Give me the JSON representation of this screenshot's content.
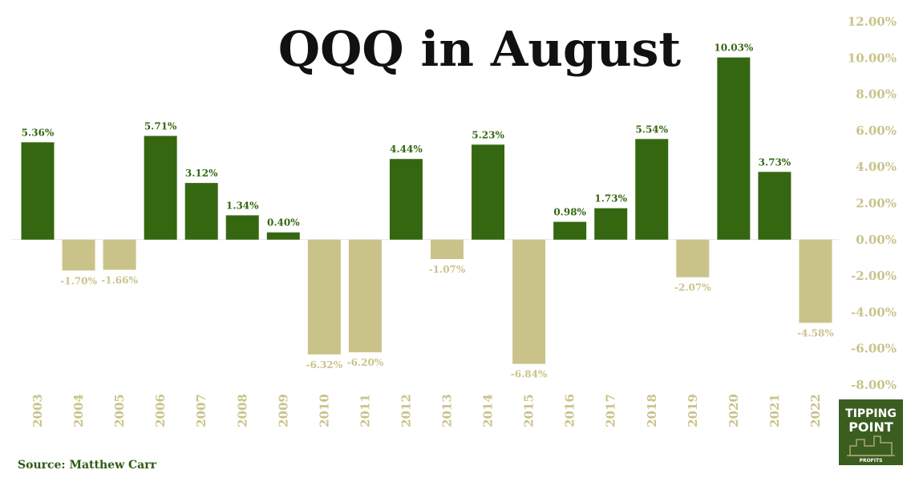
{
  "chart_data": {
    "type": "bar",
    "title": "QQQ in August",
    "categories": [
      "2003",
      "2004",
      "2005",
      "2006",
      "2007",
      "2008",
      "2009",
      "2010",
      "2011",
      "2012",
      "2013",
      "2014",
      "2015",
      "2016",
      "2017",
      "2018",
      "2019",
      "2020",
      "2021",
      "2022"
    ],
    "values": [
      5.36,
      -1.7,
      -1.66,
      5.71,
      3.12,
      1.34,
      0.4,
      -6.32,
      -6.2,
      4.44,
      -1.07,
      5.23,
      -6.84,
      0.98,
      1.73,
      5.54,
      -2.07,
      10.03,
      3.73,
      -4.58
    ],
    "value_labels": [
      "5.36%",
      "-1.70%",
      "-1.66%",
      "5.71%",
      "3.12%",
      "1.34%",
      "0.40%",
      "-6.32%",
      "-6.20%",
      "4.44%",
      "-1.07%",
      "5.23%",
      "-6.84%",
      "0.98%",
      "1.73%",
      "5.54%",
      "-2.07%",
      "10.03%",
      "3.73%",
      "-4.58%"
    ],
    "ylim": [
      -8,
      12
    ],
    "yticks": [
      12,
      10,
      8,
      6,
      4,
      2,
      0,
      -2,
      -4,
      -6,
      -8
    ],
    "ytick_labels": [
      "12.00%",
      "10.00%",
      "8.00%",
      "6.00%",
      "4.00%",
      "2.00%",
      "0.00%",
      "-2.00%",
      "-4.00%",
      "-6.00%",
      "-8.00%"
    ],
    "yaxis_position": "right",
    "grid": false,
    "xlabel": "",
    "ylabel": "",
    "colors": {
      "positive": "#356711",
      "negative": "#c9c38a",
      "zero_line": "#e6e6e6"
    }
  },
  "source": "Source: Matthew Carr",
  "logo": {
    "line1": "TIPPING",
    "line2": "POINT",
    "line3": "PROFITS",
    "bg": "#3b5e20"
  }
}
